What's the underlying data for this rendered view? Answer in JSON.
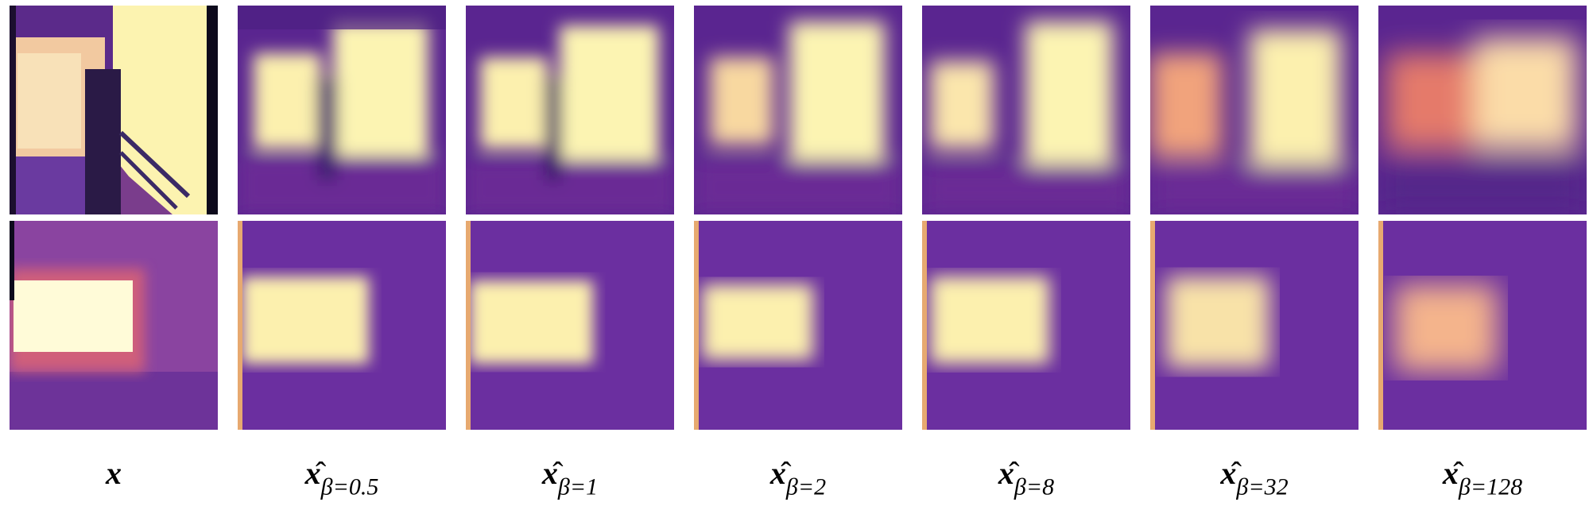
{
  "figure": {
    "columns": [
      {
        "symbol": "x",
        "hat": false,
        "subscript": ""
      },
      {
        "symbol": "x",
        "hat": true,
        "subscript": "β=0.5"
      },
      {
        "symbol": "x",
        "hat": true,
        "subscript": "β=1"
      },
      {
        "symbol": "x",
        "hat": true,
        "subscript": "β=2"
      },
      {
        "symbol": "x",
        "hat": true,
        "subscript": "β=8"
      },
      {
        "symbol": "x",
        "hat": true,
        "subscript": "β=32"
      },
      {
        "symbol": "x",
        "hat": true,
        "subscript": "β=128"
      }
    ],
    "rows": 2,
    "colormap": [
      "#1b0c41",
      "#4a0c6b",
      "#781c6d",
      "#a52c60",
      "#cf4446",
      "#ed6925",
      "#fb9b06",
      "#fcffa4"
    ],
    "colormap_name": "magma"
  }
}
